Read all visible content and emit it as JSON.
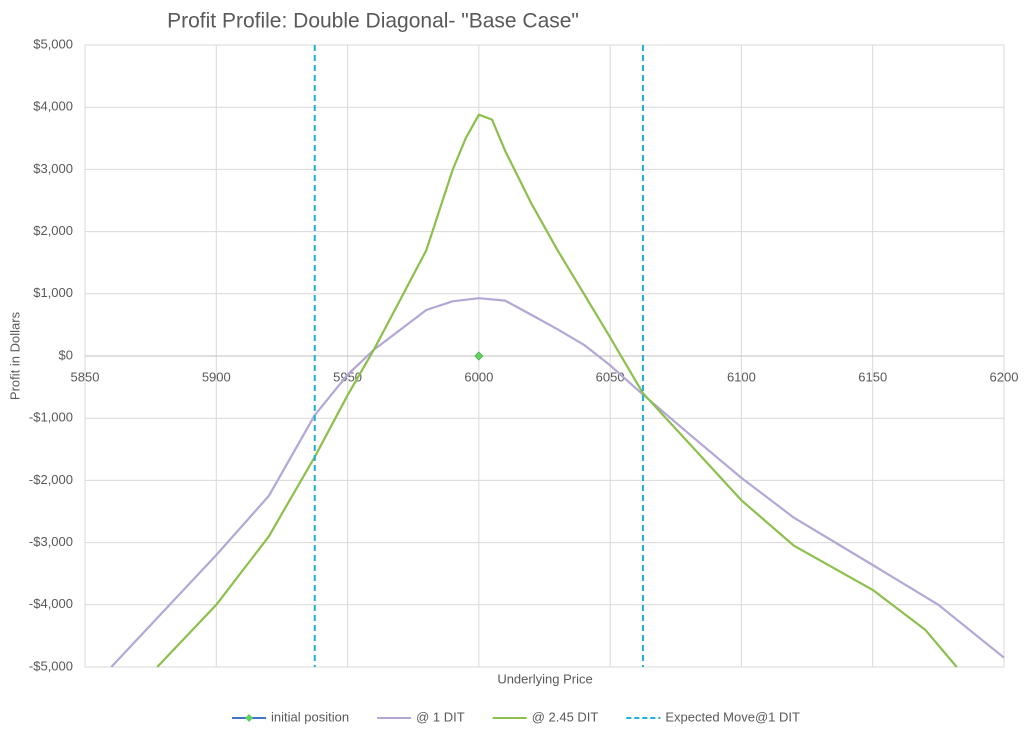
{
  "chart_data": {
    "type": "line",
    "title": "Profit Profile: Double Diagonal- \"Base Case\"",
    "xlabel": "Underlying Price",
    "ylabel": "Profit in Dollars",
    "xlim": [
      5850,
      6200
    ],
    "xticks": [
      5850,
      5900,
      5950,
      6000,
      6050,
      6100,
      6150,
      6200
    ],
    "ylim": [
      -5000,
      5000
    ],
    "yticks": [
      {
        "value": -5000,
        "label": "-$5,000"
      },
      {
        "value": -4000,
        "label": "-$4,000"
      },
      {
        "value": -3000,
        "label": "-$3,000"
      },
      {
        "value": -2000,
        "label": "-$2,000"
      },
      {
        "value": -1000,
        "label": "-$1,000"
      },
      {
        "value": 0,
        "label": "$0"
      },
      {
        "value": 1000,
        "label": "$1,000"
      },
      {
        "value": 2000,
        "label": "$2,000"
      },
      {
        "value": 3000,
        "label": "$3,000"
      },
      {
        "value": 4000,
        "label": "$4,000"
      },
      {
        "value": 5000,
        "label": "$5,000"
      }
    ],
    "grid": true,
    "legend": "bottom",
    "series": [
      {
        "name": "initial position",
        "color": "#4472c4",
        "marker_color": "#5fd35f",
        "marker": "diamond",
        "x": [
          6000
        ],
        "values": [
          0
        ]
      },
      {
        "name": "@ 1 DIT",
        "color": "#b4a7d6",
        "x": [
          5860,
          5880,
          5900,
          5920,
          5937.5,
          5950,
          5960,
          5970,
          5980,
          5990,
          6000,
          6010,
          6020,
          6030,
          6040,
          6050,
          6062.5,
          6080,
          6100,
          6120,
          6150,
          6175,
          6200
        ],
        "values": [
          -5000,
          -4100,
          -3200,
          -2250,
          -950,
          -300,
          100,
          420,
          740,
          880,
          930,
          890,
          660,
          430,
          180,
          -150,
          -620,
          -1250,
          -1960,
          -2600,
          -3360,
          -4000,
          -4850
        ]
      },
      {
        "name": "@ 2.45 DIT",
        "color": "#8cbf4c",
        "x": [
          5877.5,
          5900,
          5920,
          5937.5,
          5950,
          5960,
          5970,
          5980,
          5990,
          5995,
          6000,
          6005,
          6010,
          6020,
          6030,
          6040,
          6050,
          6062.5,
          6080,
          6100,
          6120,
          6150,
          6170,
          6182
        ],
        "values": [
          -5000,
          -4000,
          -2900,
          -1620,
          -630,
          100,
          900,
          1700,
          2990,
          3500,
          3880,
          3800,
          3300,
          2450,
          1700,
          1000,
          300,
          -600,
          -1400,
          -2320,
          -3050,
          -3760,
          -4400,
          -5000
        ]
      },
      {
        "name": "Expected Move@1 DIT",
        "color": "#1fb0d8",
        "style": "vline-dashed",
        "x": [
          5937.5,
          6062.5
        ]
      }
    ]
  }
}
